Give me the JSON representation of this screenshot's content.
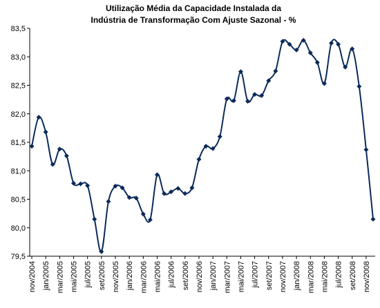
{
  "chart_data": {
    "type": "line",
    "title": [
      "Utilização Média da Capacidade Instalada da",
      "Indústria de Transformação Com Ajuste Sazonal - %"
    ],
    "categories": [
      "nov/2004",
      null,
      "jan/2005",
      null,
      "mar/2005",
      null,
      "mai/2005",
      null,
      "jul/2005",
      null,
      "set/2005",
      null,
      "nov/2005",
      null,
      "jan/2006",
      null,
      "mar/2006",
      null,
      "mai/2006",
      null,
      "jul/2006",
      null,
      "set/2006",
      null,
      "nov/2006",
      null,
      "jan/2007",
      null,
      "mar/2007",
      null,
      "mai/2007",
      null,
      "jul/2007",
      null,
      "set/2007",
      null,
      "nov/2007",
      null,
      "jan/2008",
      null,
      "mar/2008",
      null,
      "mai/2008",
      null,
      "jul/2008",
      null,
      "set/2008",
      null,
      "nov/2008",
      null
    ],
    "series": [
      {
        "name": "Utilização",
        "color": "#0b2a5a",
        "values": [
          81.43,
          81.94,
          81.68,
          81.11,
          81.38,
          81.26,
          80.78,
          80.77,
          80.74,
          80.15,
          79.58,
          80.46,
          80.73,
          80.7,
          80.53,
          80.52,
          80.24,
          80.14,
          80.93,
          80.6,
          80.63,
          80.69,
          80.6,
          80.7,
          81.2,
          81.43,
          81.39,
          81.6,
          82.26,
          82.23,
          82.74,
          82.22,
          82.34,
          82.32,
          82.58,
          82.75,
          83.27,
          83.22,
          83.12,
          83.29,
          83.07,
          82.9,
          82.53,
          83.24,
          83.22,
          82.82,
          83.14,
          82.48,
          81.37,
          80.15
        ]
      }
    ],
    "ylim": [
      79.5,
      83.5
    ],
    "yticks": [
      {
        "value": 79.5,
        "label": "79,5"
      },
      {
        "value": 80,
        "label": "80,0"
      },
      {
        "value": 80.5,
        "label": "80,5"
      },
      {
        "value": 81,
        "label": "81,0"
      },
      {
        "value": 81.5,
        "label": "81,5"
      },
      {
        "value": 82,
        "label": "82,0"
      },
      {
        "value": 82.5,
        "label": "82,5"
      },
      {
        "value": 83,
        "label": "83,0"
      },
      {
        "value": 83.5,
        "label": "83,5"
      }
    ],
    "grid": false,
    "smooth": true
  }
}
